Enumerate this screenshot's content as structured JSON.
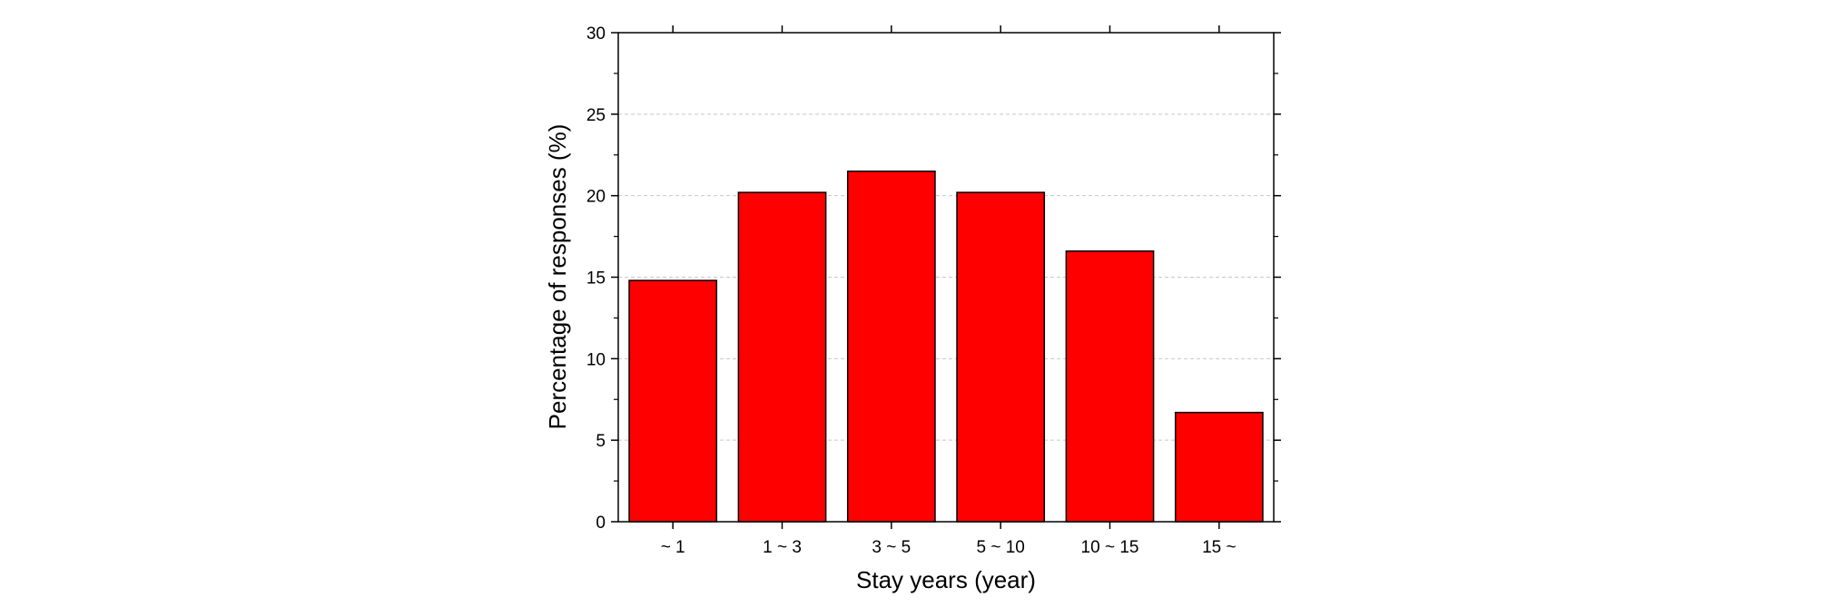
{
  "chart_data": {
    "type": "bar",
    "categories": [
      "~ 1",
      "1 ~ 3",
      "3 ~ 5",
      "5 ~ 10",
      "10 ~ 15",
      "15 ~"
    ],
    "values": [
      14.8,
      20.2,
      21.5,
      20.2,
      16.6,
      6.7
    ],
    "xlabel": "Stay years (year)",
    "ylabel": "Percentage of responses (%)",
    "ylim": [
      0,
      30
    ],
    "yticks": [
      0,
      5,
      10,
      15,
      20,
      25,
      30
    ],
    "grid": "horizontal dashed",
    "bar_color": "#ff0000"
  }
}
